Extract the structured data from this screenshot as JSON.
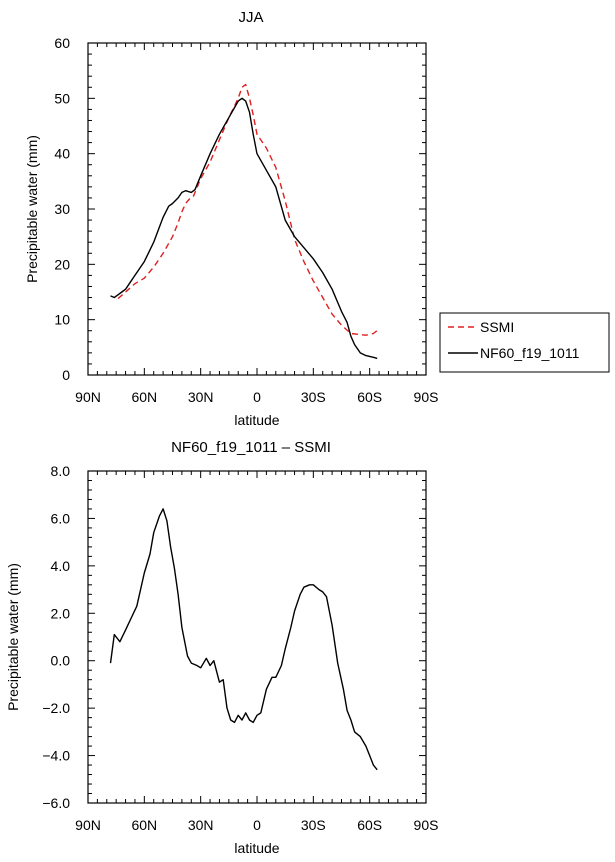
{
  "chart_data": [
    {
      "type": "line",
      "title": "JJA",
      "xlabel": "latitude",
      "ylabel": "Precipitable water (mm)",
      "xlim": [
        90,
        -90
      ],
      "ylim": [
        0,
        60
      ],
      "xticks": [
        90,
        60,
        30,
        0,
        -30,
        -60,
        -90
      ],
      "xtick_labels": [
        "90N",
        "60N",
        "30N",
        "0",
        "30S",
        "60S",
        "90S"
      ],
      "yticks": [
        0,
        10,
        20,
        30,
        40,
        50,
        60
      ],
      "ytick_labels": [
        "0",
        "10",
        "20",
        "30",
        "40",
        "50",
        "60"
      ],
      "legend": {
        "placement": "right-outside"
      },
      "series": [
        {
          "name": "SSMI",
          "color": "#e02020",
          "dash": "dashed",
          "x": [
            74,
            70,
            65,
            60,
            55,
            50,
            45,
            42,
            40,
            38,
            36,
            34,
            30,
            25,
            20,
            15,
            10,
            8,
            6,
            4,
            2,
            0,
            -5,
            -10,
            -15,
            -20,
            -25,
            -30,
            -35,
            -40,
            -45,
            -50,
            -55,
            -58,
            -62,
            -65
          ],
          "y": [
            13.8,
            15,
            16.5,
            17.5,
            19.5,
            22,
            25,
            27.5,
            29.5,
            31,
            31.8,
            32.2,
            35.5,
            38.5,
            42.5,
            46.5,
            50,
            52,
            52.5,
            50,
            47,
            43.5,
            41,
            37.5,
            31.5,
            24.5,
            20.5,
            17,
            14,
            11,
            9,
            7.5,
            7.3,
            7.2,
            7.5,
            8.3
          ]
        },
        {
          "name": "NF60_f19_1011",
          "color": "#000000",
          "dash": "solid",
          "x": [
            78,
            76,
            74,
            72,
            70,
            68,
            65,
            60,
            55,
            50,
            47,
            45,
            42,
            40,
            38,
            35,
            33,
            30,
            25,
            20,
            15,
            10,
            8,
            6,
            4,
            2,
            0,
            -5,
            -10,
            -15,
            -20,
            -25,
            -30,
            -35,
            -40,
            -45,
            -48,
            -50,
            -52,
            -55,
            -58,
            -62,
            -64
          ],
          "y": [
            14.3,
            14,
            14.5,
            15,
            15.5,
            16.5,
            18,
            20.5,
            24,
            28.5,
            30.5,
            31,
            32,
            33,
            33.3,
            33,
            33.5,
            36,
            40,
            43.5,
            46.5,
            49.5,
            50,
            49.5,
            47.5,
            43.5,
            40,
            37,
            34,
            28,
            25,
            23,
            21,
            18.5,
            15.5,
            11.5,
            9.5,
            7,
            5.5,
            4,
            3.5,
            3.2,
            3
          ]
        }
      ]
    },
    {
      "type": "line",
      "title": "NF60_f19_1011 – SSMI",
      "xlabel": "latitude",
      "ylabel": "Precipitable water (mm)",
      "xlim": [
        90,
        -90
      ],
      "ylim": [
        -6,
        8
      ],
      "xticks": [
        90,
        60,
        30,
        0,
        -30,
        -60,
        -90
      ],
      "xtick_labels": [
        "90N",
        "60N",
        "30N",
        "0",
        "30S",
        "60S",
        "90S"
      ],
      "yticks": [
        -6,
        -4,
        -2,
        0,
        2,
        4,
        6,
        8
      ],
      "ytick_labels": [
        "−6.0",
        "−4.0",
        "−2.0",
        "0.0",
        "2.0",
        "4.0",
        "6.0",
        "8.0"
      ],
      "series": [
        {
          "color": "#000000",
          "dash": "solid",
          "x": [
            78,
            76,
            73,
            70,
            67,
            64,
            60,
            57,
            55,
            52,
            50,
            48,
            46,
            44,
            42,
            40,
            37,
            35,
            32,
            30,
            27,
            25,
            23,
            20,
            18,
            16,
            14,
            12,
            10,
            8,
            6,
            4,
            2,
            0,
            -2,
            -5,
            -8,
            -10,
            -13,
            -15,
            -18,
            -20,
            -23,
            -25,
            -28,
            -30,
            -33,
            -35,
            -37,
            -40,
            -43,
            -46,
            -48,
            -50,
            -52,
            -55,
            -58,
            -60,
            -62,
            -64
          ],
          "y": [
            -0.1,
            1.1,
            0.8,
            1.3,
            1.8,
            2.3,
            3.7,
            4.5,
            5.4,
            6.1,
            6.4,
            5.9,
            4.8,
            3.9,
            2.8,
            1.4,
            0.2,
            -0.1,
            -0.2,
            -0.3,
            0.1,
            -0.2,
            0.0,
            -0.9,
            -0.8,
            -2.0,
            -2.5,
            -2.6,
            -2.3,
            -2.5,
            -2.2,
            -2.5,
            -2.6,
            -2.3,
            -2.2,
            -1.2,
            -0.7,
            -0.7,
            -0.2,
            0.5,
            1.4,
            2.1,
            2.8,
            3.1,
            3.2,
            3.2,
            3.0,
            2.9,
            2.7,
            1.5,
            -0.1,
            -1.2,
            -2.1,
            -2.5,
            -3.0,
            -3.2,
            -3.6,
            -4.0,
            -4.4,
            -4.6
          ]
        }
      ]
    }
  ]
}
